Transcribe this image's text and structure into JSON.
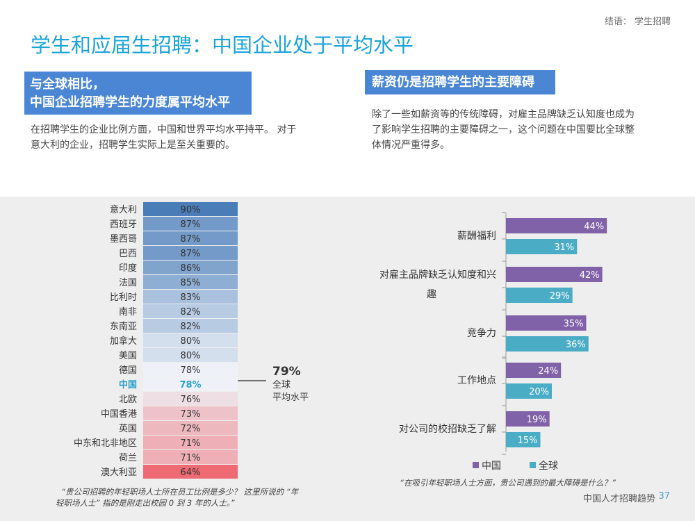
{
  "header": {
    "breadcrumb": "结语： 学生招聘",
    "title": "学生和应届生招聘：中国企业处于平均水平"
  },
  "left_panel": {
    "heading_line1": "与全球相比，",
    "heading_line2": "中国企业招聘学生的力度属平均水平",
    "description_line1": "在招聘学生的企业比例方面，中国和世界平均水平持平。 对于",
    "description_line2": "意大利的企业，招聘学生实际上是至关重要的。"
  },
  "right_panel": {
    "heading": "薪资仍是招聘学生的主要障碍",
    "description_line1": "除了一些如薪资等的传统障碍，对雇主品牌缺乏认知度也成为",
    "description_line2": "了影响学生招聘的主要障碍之一，这个问题在中国要比全球整",
    "description_line3": "体情况严重得多。"
  },
  "chart_data": [
    {
      "type": "table",
      "categories": [
        "意大利",
        "西班牙",
        "墨西哥",
        "巴西",
        "印度",
        "法国",
        "比利时",
        "南非",
        "东南亚",
        "加拿大",
        "美国",
        "德国",
        "中国",
        "北欧",
        "中国香港",
        "英国",
        "中东和北非地区",
        "荷兰",
        "澳大利亚"
      ],
      "values": [
        90,
        87,
        87,
        87,
        86,
        85,
        83,
        82,
        82,
        80,
        80,
        78,
        78,
        76,
        73,
        72,
        71,
        71,
        64
      ],
      "value_labels": [
        "90%",
        "87%",
        "87%",
        "87%",
        "86%",
        "85%",
        "83%",
        "82%",
        "82%",
        "80%",
        "80%",
        "78%",
        "78%",
        "76%",
        "73%",
        "72%",
        "71%",
        "71%",
        "64%"
      ],
      "highlight": "中国",
      "highlight_color": "#2aa0c8",
      "average": {
        "value_label": "79%",
        "label_line1": "全球",
        "label_line2": "平均水平"
      },
      "question": "“贵公司招聘的年轻职场人士所在员工比例是多少？ 这里所说的 “年轻职场人士” 指的是刚走出校园 0 到 3 年的人士。”",
      "question_line1": "“贵公司招聘的年轻职场人士所在员工比例是多少？ 这里所说的 “年",
      "question_line2": "轻职场人士” 指的是刚走出校园 0 到 3 年的人士。”"
    },
    {
      "type": "bar",
      "orientation": "horizontal",
      "categories": [
        "薪酬福利",
        "对雇主品牌缺乏认知度和兴趣",
        "竞争力",
        "工作地点",
        "对公司的校招缺乏了解"
      ],
      "category_lines": [
        [
          "薪酬福利"
        ],
        [
          "对雇主品牌缺乏认知度和兴",
          "趣"
        ],
        [
          "竞争力"
        ],
        [
          "工作地点"
        ],
        [
          "对公司的校招缺乏了解"
        ]
      ],
      "series": [
        {
          "name": "中国",
          "values": [
            44,
            42,
            35,
            24,
            19
          ],
          "labels": [
            "44%",
            "42%",
            "35%",
            "24%",
            "19%"
          ],
          "color": "#8062a8"
        },
        {
          "name": "全球",
          "values": [
            31,
            29,
            36,
            20,
            15
          ],
          "labels": [
            "31%",
            "29%",
            "36%",
            "20%",
            "15%"
          ],
          "color": "#4bacc6"
        }
      ],
      "xlim": [
        0,
        100
      ],
      "legend": "bottom",
      "question": "“在吸引年轻职场人士方面，贵公司遇到的最大障碍是什么？”"
    }
  ],
  "footer": {
    "text": "中国人才招聘趋势",
    "page_number": "37"
  }
}
